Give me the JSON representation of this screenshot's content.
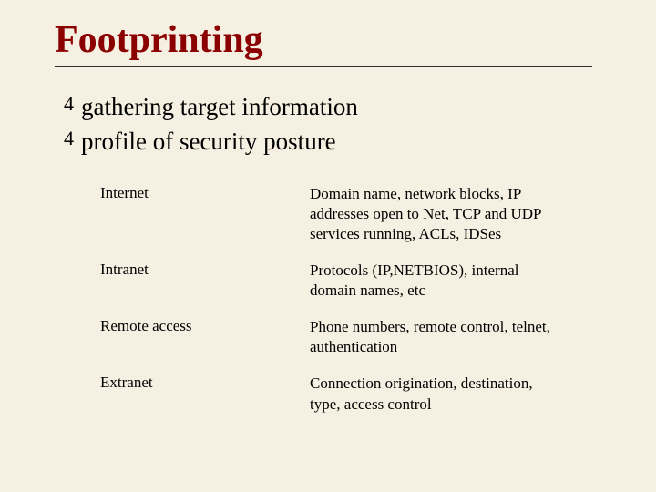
{
  "background_color": "#f5f0e1",
  "title": {
    "text": "Footprinting",
    "color": "#8b0000",
    "fontsize": 42,
    "font_weight": "bold"
  },
  "bullets": [
    {
      "icon": "4",
      "text": "gathering target information"
    },
    {
      "icon": "4",
      "text": "profile of security posture"
    }
  ],
  "table": {
    "rows": [
      {
        "left": "Internet",
        "right": "Domain name, network blocks, IP addresses open to Net, TCP and UDP services running, ACLs, IDSes"
      },
      {
        "left": "Intranet",
        "right": "Protocols (IP,NETBIOS), internal domain names, etc"
      },
      {
        "left": "Remote access",
        "right": "Phone numbers, remote control, telnet, authentication"
      },
      {
        "left": "Extranet",
        "right": "Connection origination, destination, type, access control"
      }
    ],
    "fontsize": 17,
    "text_color": "#000000"
  }
}
